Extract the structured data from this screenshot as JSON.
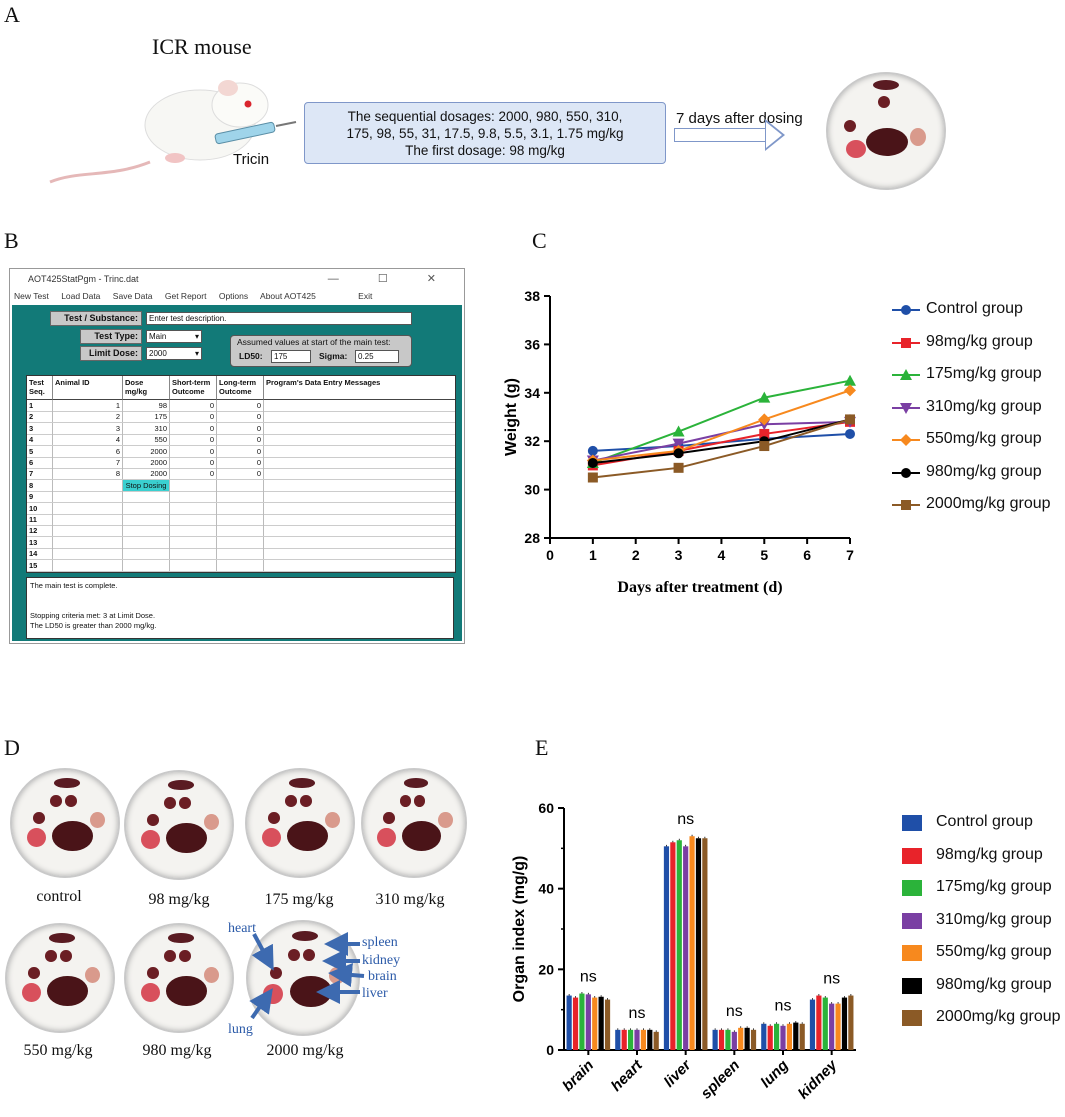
{
  "panel_labels": {
    "a": "A",
    "b": "B",
    "c": "C",
    "d": "D",
    "e": "E"
  },
  "panel_a": {
    "mouse_label": "ICR mouse",
    "injection_label": "Tricin",
    "dosage_line1": "The sequential dosages: 2000, 980, 550, 310,",
    "dosage_line2": "175, 98, 55, 31, 17.5, 9.8, 5.5, 3.1, 1.75 mg/kg",
    "dosage_line3": "The first dosage:  98 mg/kg",
    "arrow_label": "7 days after dosing"
  },
  "panel_b": {
    "window_title": "AOT425StatPgm - Trinc.dat",
    "window_controls": "— ☐ ✕",
    "menu": [
      "New Test",
      "Load Data",
      "Save Data",
      "Get Report",
      "Options",
      "About AOT425",
      "Exit"
    ],
    "test_substance_label": "Test / Substance:",
    "test_substance_value": "Enter test description.",
    "test_type_label": "Test Type:",
    "test_type_value": "Main",
    "limit_dose_label": "Limit Dose:",
    "limit_dose_value": "2000",
    "assumed_title": "Assumed values at start of the main test:",
    "ld50_label": "LD50:",
    "ld50_value": "175",
    "sigma_label": "Sigma:",
    "sigma_value": "0.25",
    "columns": [
      "Test Seq.",
      "Animal ID",
      "Dose mg/kg",
      "Short-term Outcome",
      "Long-term Outcome",
      "Program's Data Entry Messages"
    ],
    "rows": [
      [
        "1",
        "1",
        "98",
        "0",
        "0"
      ],
      [
        "2",
        "2",
        "175",
        "0",
        "0"
      ],
      [
        "3",
        "3",
        "310",
        "0",
        "0"
      ],
      [
        "4",
        "4",
        "550",
        "0",
        "0"
      ],
      [
        "5",
        "6",
        "2000",
        "0",
        "0"
      ],
      [
        "6",
        "7",
        "2000",
        "0",
        "0"
      ],
      [
        "7",
        "8",
        "2000",
        "0",
        "0"
      ],
      [
        "8",
        "",
        "",
        "",
        ""
      ],
      [
        "9",
        "",
        "",
        "",
        ""
      ],
      [
        "10",
        "",
        "",
        "",
        ""
      ],
      [
        "11",
        "",
        "",
        "",
        ""
      ],
      [
        "12",
        "",
        "",
        "",
        ""
      ],
      [
        "13",
        "",
        "",
        "",
        ""
      ],
      [
        "14",
        "",
        "",
        "",
        ""
      ],
      [
        "15",
        "",
        "",
        "",
        ""
      ]
    ],
    "stop_label": "Stop Dosing",
    "msg1": "The main test is complete.",
    "msg2": "Stopping criteria met:  3 at Limit Dose.",
    "msg3": "The LD50 is greater than 2000 mg/kg."
  },
  "panel_d": {
    "labels": [
      "control",
      "98 mg/kg",
      "175 mg/kg",
      "310 mg/kg",
      "550 mg/kg",
      "980 mg/kg",
      "2000 mg/kg"
    ],
    "annotations": {
      "heart": "heart",
      "lung": "lung",
      "spleen": "spleen",
      "kidney": "kidney",
      "brain": "brain",
      "liver": "liver"
    }
  },
  "colors": {
    "Control group": "#1f4fa8",
    "98mg/kg group": "#e8232a",
    "175mg/kg group": "#2bb33a",
    "310mg/kg group": "#7a3fa3",
    "550mg/kg group": "#f7891e",
    "980mg/kg group": "#000000",
    "2000mg/kg group": "#8b5a26"
  },
  "chart_data": [
    {
      "type": "line",
      "title": "",
      "xlabel": "Days after treatment (d)",
      "ylabel": "Weight (g)",
      "xlim": [
        0,
        7
      ],
      "ylim": [
        28,
        38
      ],
      "xticks": [
        0,
        1,
        2,
        3,
        4,
        5,
        6,
        7
      ],
      "yticks": [
        28,
        30,
        32,
        34,
        36,
        38
      ],
      "x": [
        1,
        3,
        5,
        7
      ],
      "series": [
        {
          "name": "Control group",
          "values": [
            31.6,
            31.8,
            32.1,
            32.3
          ],
          "marker": "circle"
        },
        {
          "name": "98mg/kg group",
          "values": [
            31.0,
            31.6,
            32.3,
            32.8
          ],
          "marker": "square"
        },
        {
          "name": "175mg/kg group",
          "values": [
            31.1,
            32.4,
            33.8,
            34.5
          ],
          "marker": "triangle-up"
        },
        {
          "name": "310mg/kg group",
          "values": [
            31.2,
            31.9,
            32.7,
            32.8
          ],
          "marker": "triangle-down"
        },
        {
          "name": "550mg/kg group",
          "values": [
            31.2,
            31.6,
            32.9,
            34.1
          ],
          "marker": "diamond"
        },
        {
          "name": "980mg/kg group",
          "values": [
            31.1,
            31.5,
            32.0,
            32.9
          ],
          "marker": "circle"
        },
        {
          "name": "2000mg/kg group",
          "values": [
            30.5,
            30.9,
            31.8,
            32.9
          ],
          "marker": "square"
        }
      ]
    },
    {
      "type": "bar",
      "title": "",
      "xlabel": "",
      "ylabel": "Organ index (mg/g)",
      "ylim": [
        0,
        60
      ],
      "yticks": [
        0,
        20,
        40,
        60
      ],
      "categories": [
        "brain",
        "heart",
        "liver",
        "spleen",
        "lung",
        "kidney"
      ],
      "annotations": [
        "ns",
        "ns",
        "ns",
        "ns",
        "ns",
        "ns"
      ],
      "series": [
        {
          "name": "Control group",
          "values": [
            13.5,
            5.0,
            50.5,
            5.0,
            6.5,
            12.5
          ]
        },
        {
          "name": "98mg/kg group",
          "values": [
            13.0,
            5.0,
            51.5,
            5.0,
            6.0,
            13.5
          ]
        },
        {
          "name": "175mg/kg group",
          "values": [
            14.0,
            5.0,
            52.0,
            5.0,
            6.5,
            13.0
          ]
        },
        {
          "name": "310mg/kg group",
          "values": [
            13.8,
            5.0,
            50.5,
            4.5,
            6.0,
            11.5
          ]
        },
        {
          "name": "550mg/kg group",
          "values": [
            13.0,
            5.0,
            53.0,
            5.5,
            6.5,
            11.5
          ]
        },
        {
          "name": "980mg/kg group",
          "values": [
            13.2,
            5.0,
            52.5,
            5.5,
            6.8,
            13.0
          ]
        },
        {
          "name": "2000mg/kg group",
          "values": [
            12.5,
            4.5,
            52.5,
            5.0,
            6.5,
            13.5
          ]
        }
      ]
    }
  ]
}
